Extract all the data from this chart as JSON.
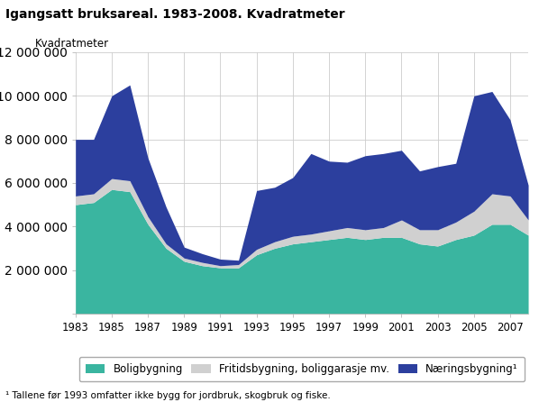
{
  "title": "Igangsatt bruksareal. 1983-2008. Kvadratmeter",
  "ylabel": "Kvadratmeter",
  "years": [
    1983,
    1984,
    1985,
    1986,
    1987,
    1988,
    1989,
    1990,
    1991,
    1992,
    1993,
    1994,
    1995,
    1996,
    1997,
    1998,
    1999,
    2000,
    2001,
    2002,
    2003,
    2004,
    2005,
    2006,
    2007,
    2008
  ],
  "boligbygning": [
    5000000,
    5100000,
    5700000,
    5600000,
    4100000,
    3000000,
    2400000,
    2200000,
    2100000,
    2100000,
    2700000,
    3000000,
    3200000,
    3300000,
    3400000,
    3500000,
    3400000,
    3500000,
    3500000,
    3200000,
    3100000,
    3400000,
    3600000,
    4100000,
    4100000,
    3600000
  ],
  "fritidsbygning": [
    400000,
    400000,
    500000,
    500000,
    350000,
    200000,
    150000,
    150000,
    100000,
    150000,
    250000,
    300000,
    350000,
    350000,
    400000,
    450000,
    450000,
    450000,
    800000,
    650000,
    750000,
    800000,
    1100000,
    1400000,
    1300000,
    700000
  ],
  "naeringsbygning": [
    2600000,
    2500000,
    3800000,
    4400000,
    2700000,
    1700000,
    500000,
    400000,
    300000,
    200000,
    2700000,
    2500000,
    2700000,
    3700000,
    3200000,
    3000000,
    3400000,
    3400000,
    3200000,
    2700000,
    2900000,
    2700000,
    5300000,
    4700000,
    3500000,
    1600000
  ],
  "bolig_color": "#3ab5a0",
  "fritid_color": "#d0d0d0",
  "naering_color": "#2c3f9e",
  "background_color": "#ffffff",
  "plot_bg_color": "#ffffff",
  "grid_color": "#cccccc",
  "ylim": [
    0,
    12000000
  ],
  "yticks": [
    0,
    2000000,
    4000000,
    6000000,
    8000000,
    10000000,
    12000000
  ],
  "legend_labels": [
    "Boligbygning",
    "Fritidsbygning, boliggarasje mv.",
    "Næringsbygning¹"
  ],
  "footnote": "¹ Tallene før 1993 omfatter ikke bygg for jordbruk, skogbruk og fiske.",
  "xtick_step": 2
}
